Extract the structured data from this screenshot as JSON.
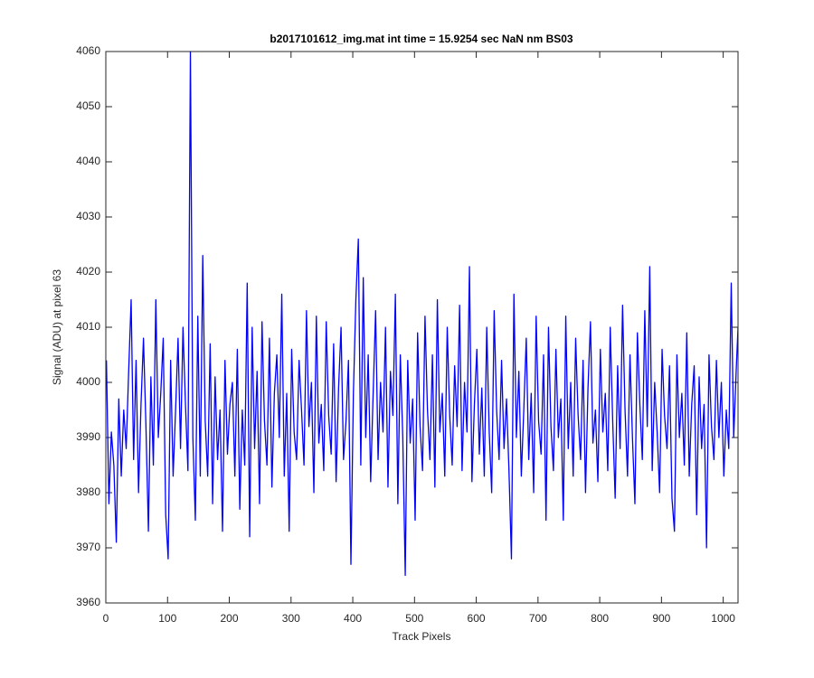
{
  "chart_data": {
    "type": "line",
    "title": "b2017101612_img.mat int time = 15.9254 sec  NaN nm BS03",
    "x_label": "Track Pixels",
    "y_label": "Signal (ADU) at pixel 63",
    "xlim": [
      0,
      1024
    ],
    "xticks": [
      0,
      100,
      200,
      300,
      400,
      500,
      600,
      700,
      800,
      900,
      1000
    ],
    "ylim": [
      3960,
      4060
    ],
    "yticks": [
      3960,
      3970,
      3980,
      3990,
      4000,
      4010,
      4020,
      4030,
      4040,
      4050,
      4060
    ],
    "grid": false,
    "x": [
      1,
      5,
      9,
      13,
      17,
      21,
      25,
      29,
      33,
      37,
      41,
      45,
      49,
      53,
      57,
      61,
      65,
      69,
      73,
      77,
      81,
      85,
      89,
      93,
      97,
      101,
      105,
      109,
      113,
      117,
      121,
      125,
      129,
      133,
      137,
      141,
      145,
      149,
      153,
      157,
      161,
      165,
      169,
      173,
      177,
      181,
      185,
      189,
      193,
      197,
      201,
      205,
      209,
      213,
      217,
      221,
      225,
      229,
      233,
      237,
      241,
      245,
      249,
      253,
      257,
      261,
      265,
      269,
      273,
      277,
      281,
      285,
      289,
      293,
      297,
      301,
      305,
      309,
      313,
      317,
      321,
      325,
      329,
      333,
      337,
      341,
      345,
      349,
      353,
      357,
      361,
      365,
      369,
      373,
      377,
      381,
      385,
      389,
      393,
      397,
      401,
      405,
      409,
      413,
      417,
      421,
      425,
      429,
      433,
      437,
      441,
      445,
      449,
      453,
      457,
      461,
      465,
      469,
      473,
      477,
      481,
      485,
      489,
      493,
      497,
      501,
      505,
      509,
      513,
      517,
      521,
      525,
      529,
      533,
      537,
      541,
      545,
      549,
      553,
      557,
      561,
      565,
      569,
      573,
      577,
      581,
      585,
      589,
      593,
      597,
      601,
      605,
      609,
      613,
      617,
      621,
      625,
      629,
      633,
      637,
      641,
      645,
      649,
      653,
      657,
      661,
      665,
      669,
      673,
      677,
      681,
      685,
      689,
      693,
      697,
      701,
      705,
      709,
      713,
      717,
      721,
      725,
      729,
      733,
      737,
      741,
      745,
      749,
      753,
      757,
      761,
      765,
      769,
      773,
      777,
      781,
      785,
      789,
      793,
      797,
      801,
      805,
      809,
      813,
      817,
      821,
      825,
      829,
      833,
      837,
      841,
      845,
      849,
      853,
      857,
      861,
      865,
      869,
      873,
      877,
      881,
      885,
      889,
      893,
      897,
      901,
      905,
      909,
      913,
      917,
      921,
      925,
      929,
      933,
      937,
      941,
      945,
      949,
      953,
      957,
      961,
      965,
      969,
      973,
      977,
      981,
      985,
      989,
      993,
      997,
      1001,
      1005,
      1009,
      1013,
      1017,
      1021,
      1024
    ],
    "series": [
      {
        "name": "signal",
        "color": "#0000ff",
        "values": [
          4004,
          3978,
          3991,
          3985,
          3971,
          3997,
          3983,
          3995,
          3988,
          4002,
          4015,
          3986,
          4004,
          3980,
          3996,
          4008,
          3992,
          3973,
          4001,
          3985,
          4015,
          3990,
          3998,
          4008,
          3976,
          3968,
          4004,
          3983,
          3995,
          4008,
          3988,
          4010,
          3996,
          3984,
          4060,
          3990,
          3975,
          4012,
          3983,
          4023,
          3993,
          3983,
          4007,
          3978,
          4001,
          3986,
          3995,
          3973,
          4004,
          3987,
          3996,
          4000,
          3983,
          4006,
          3977,
          3995,
          3985,
          4018,
          3972,
          4010,
          3988,
          4002,
          3978,
          4011,
          3993,
          3985,
          4008,
          3981,
          3998,
          4005,
          3990,
          4016,
          3983,
          3998,
          3973,
          4006,
          3991,
          3986,
          4004,
          3995,
          3985,
          4013,
          3992,
          4000,
          3980,
          4012,
          3989,
          3996,
          3984,
          4011,
          3994,
          3987,
          4007,
          3982,
          3999,
          4010,
          3986,
          3993,
          4004,
          3967,
          3998,
          4015,
          4026,
          3985,
          4019,
          3990,
          4005,
          3982,
          3998,
          4013,
          3986,
          4000,
          3991,
          4010,
          3981,
          4002,
          3994,
          4016,
          3978,
          4005,
          3990,
          3965,
          4004,
          3989,
          3997,
          3975,
          4009,
          3992,
          3984,
          4012,
          3995,
          3986,
          4005,
          3981,
          4015,
          3991,
          3998,
          3983,
          4010,
          3994,
          3985,
          4003,
          3992,
          4014,
          3984,
          4000,
          3991,
          4021,
          3982,
          3996,
          4006,
          3987,
          3999,
          3983,
          4010,
          3991,
          3980,
          4013,
          3995,
          3986,
          4004,
          3988,
          3997,
          3984,
          3968,
          4016,
          3990,
          4002,
          3983,
          3995,
          4008,
          3986,
          3998,
          3980,
          4012,
          3993,
          3987,
          4005,
          3975,
          4010,
          3992,
          3984,
          4006,
          3990,
          3997,
          3975,
          4012,
          3988,
          4000,
          3983,
          4008,
          3994,
          3986,
          4004,
          3980,
          3999,
          4011,
          3989,
          3995,
          3982,
          4006,
          3991,
          3998,
          3984,
          4010,
          3993,
          3979,
          4003,
          3988,
          4014,
          3995,
          3983,
          4005,
          3990,
          3978,
          4009,
          3996,
          3986,
          4013,
          3992,
          4021,
          3984,
          4000,
          3991,
          3980,
          4006,
          3994,
          3988,
          4003,
          3979,
          3973,
          4005,
          3990,
          3998,
          3985,
          4009,
          3983,
          3996,
          4003,
          3976,
          4001,
          3988,
          3996,
          3970,
          4005,
          3992,
          3986,
          4004,
          3990,
          4000,
          3983,
          3995,
          3988,
          4018,
          3990,
          4002,
          4010
        ]
      }
    ]
  }
}
